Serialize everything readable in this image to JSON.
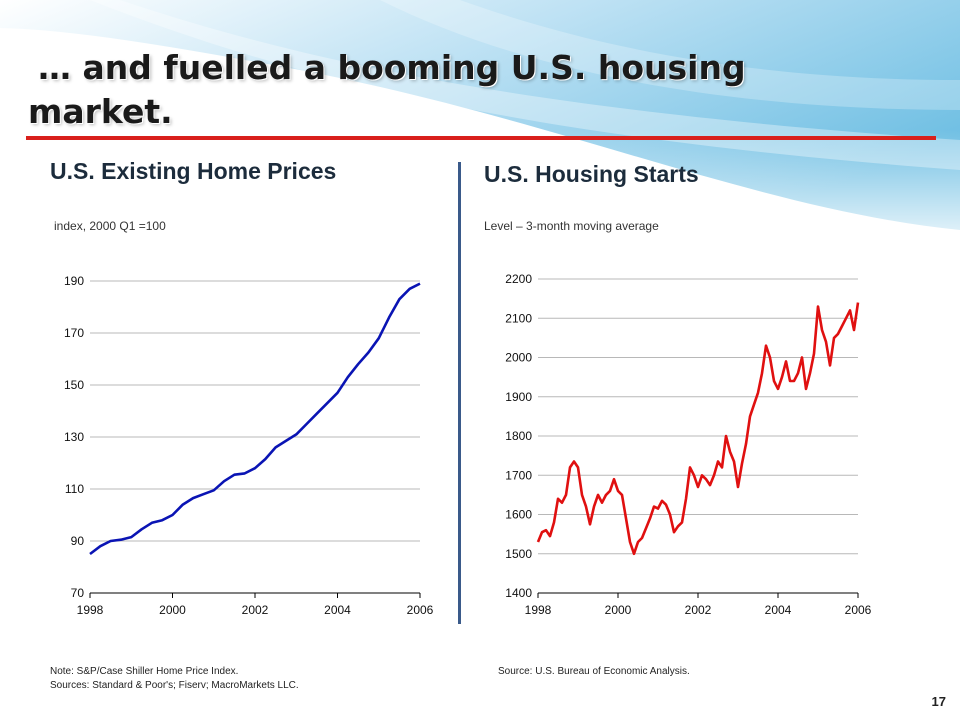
{
  "slide": {
    "title_line1": "… and fuelled a booming U.S. housing",
    "title_line2": "market.",
    "accent_color": "#d9201c",
    "page_number": "17"
  },
  "left": {
    "heading": "U.S. Existing Home Prices",
    "subtitle": "index, 2000 Q1 =100",
    "note_line1": "Note: S&P/Case Shiller Home Price Index.",
    "note_line2": "Sources: Standard & Poor's; Fiserv; MacroMarkets LLC."
  },
  "right": {
    "heading": "U.S. Housing Starts",
    "subtitle": "Level – 3-month moving average",
    "source": "Source: U.S. Bureau of Economic Analysis."
  },
  "chart_data": [
    {
      "type": "line",
      "title": "U.S. Existing Home Prices",
      "ylabel": "index, 2000 Q1 =100",
      "xlim": [
        1998,
        2006
      ],
      "ylim": [
        70,
        190
      ],
      "xticks": [
        1998,
        2000,
        2002,
        2004,
        2006
      ],
      "yticks": [
        70,
        90,
        110,
        130,
        150,
        170,
        190
      ],
      "grid": true,
      "color": "#0a14b4",
      "series": [
        {
          "x": [
            1998,
            1998.25,
            1998.5,
            1998.75,
            1999,
            1999.25,
            1999.5,
            1999.75,
            2000,
            2000.25,
            2000.5,
            2000.75,
            2001,
            2001.25,
            2001.5,
            2001.75,
            2002,
            2002.25,
            2002.5,
            2002.75,
            2003,
            2003.25,
            2003.5,
            2003.75,
            2004,
            2004.25,
            2004.5,
            2004.75,
            2005,
            2005.25,
            2005.5,
            2005.75,
            2006
          ],
          "y": [
            85,
            88,
            90,
            90.5,
            91.5,
            94.5,
            97,
            98,
            100,
            104,
            106.5,
            108,
            109.5,
            113,
            115.5,
            116,
            118,
            121.5,
            126,
            128.5,
            131,
            135,
            139,
            143,
            147,
            153,
            158,
            162.5,
            168,
            176,
            183,
            187,
            189
          ]
        }
      ]
    },
    {
      "type": "line",
      "title": "U.S. Housing Starts",
      "ylabel": "Level – 3-month moving average",
      "xlim": [
        1998,
        2006
      ],
      "ylim": [
        1400,
        2200
      ],
      "xticks": [
        1998,
        2000,
        2002,
        2004,
        2006
      ],
      "yticks": [
        1400,
        1500,
        1600,
        1700,
        1800,
        1900,
        2000,
        2100,
        2200
      ],
      "grid": true,
      "color": "#e01010",
      "series": [
        {
          "x": [
            1998,
            1998.1,
            1998.2,
            1998.3,
            1998.4,
            1998.5,
            1998.6,
            1998.7,
            1998.8,
            1998.9,
            1999,
            1999.1,
            1999.2,
            1999.3,
            1999.4,
            1999.5,
            1999.6,
            1999.7,
            1999.8,
            1999.9,
            2000,
            2000.1,
            2000.2,
            2000.3,
            2000.4,
            2000.5,
            2000.6,
            2000.7,
            2000.8,
            2000.9,
            2001,
            2001.1,
            2001.2,
            2001.3,
            2001.4,
            2001.5,
            2001.6,
            2001.7,
            2001.8,
            2001.9,
            2002,
            2002.1,
            2002.2,
            2002.3,
            2002.4,
            2002.5,
            2002.6,
            2002.7,
            2002.8,
            2002.9,
            2003,
            2003.1,
            2003.2,
            2003.3,
            2003.4,
            2003.5,
            2003.6,
            2003.7,
            2003.8,
            2003.9,
            2004,
            2004.1,
            2004.2,
            2004.3,
            2004.4,
            2004.5,
            2004.6,
            2004.7,
            2004.8,
            2004.9,
            2005,
            2005.1,
            2005.2,
            2005.3,
            2005.4,
            2005.5,
            2005.6,
            2005.7,
            2005.8,
            2005.9,
            2006
          ],
          "y": [
            1530,
            1555,
            1560,
            1545,
            1580,
            1640,
            1630,
            1650,
            1720,
            1735,
            1720,
            1650,
            1620,
            1575,
            1620,
            1650,
            1630,
            1650,
            1660,
            1690,
            1660,
            1650,
            1590,
            1530,
            1500,
            1530,
            1540,
            1565,
            1590,
            1620,
            1615,
            1635,
            1625,
            1600,
            1555,
            1570,
            1580,
            1640,
            1720,
            1700,
            1670,
            1700,
            1690,
            1675,
            1700,
            1735,
            1720,
            1800,
            1760,
            1735,
            1670,
            1730,
            1780,
            1850,
            1880,
            1910,
            1960,
            2030,
            2000,
            1940,
            1920,
            1950,
            1990,
            1940,
            1940,
            1960,
            2000,
            1920,
            1960,
            2010,
            2130,
            2070,
            2040,
            1980,
            2050,
            2060,
            2080,
            2100,
            2120,
            2070,
            2140
          ]
        }
      ]
    }
  ]
}
